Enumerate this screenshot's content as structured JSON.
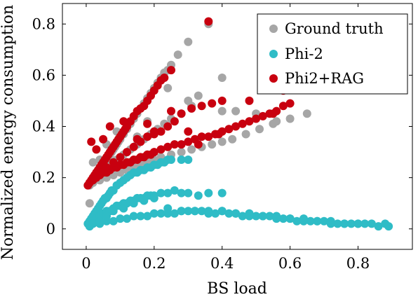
{
  "chart_data": {
    "type": "scatter",
    "title": "",
    "xlabel": "BS load",
    "ylabel": "Normalized energy consumption",
    "xlim": [
      -0.07,
      0.96
    ],
    "ylim": [
      -0.08,
      0.88
    ],
    "xticks": [
      {
        "value": 0,
        "label": "0"
      },
      {
        "value": 0.2,
        "label": "0.2"
      },
      {
        "value": 0.4,
        "label": "0.4"
      },
      {
        "value": 0.6,
        "label": "0.6"
      },
      {
        "value": 0.8,
        "label": "0.8"
      }
    ],
    "yticks": [
      {
        "value": 0,
        "label": "0"
      },
      {
        "value": 0.2,
        "label": "0.2"
      },
      {
        "value": 0.4,
        "label": "0.4"
      },
      {
        "value": 0.6,
        "label": "0.6"
      },
      {
        "value": 0.8,
        "label": "0.8"
      }
    ],
    "grid": false,
    "legend_position": "top-right",
    "series": [
      {
        "name": "Ground truth",
        "color": "#a6a6a6",
        "x": [
          0.01,
          0.015,
          0.02,
          0.025,
          0.03,
          0.035,
          0.04,
          0.045,
          0.05,
          0.055,
          0.06,
          0.065,
          0.07,
          0.075,
          0.08,
          0.085,
          0.09,
          0.095,
          0.1,
          0.11,
          0.12,
          0.13,
          0.14,
          0.15,
          0.16,
          0.17,
          0.18,
          0.19,
          0.2,
          0.21,
          0.22,
          0.23,
          0.24,
          0.25,
          0.27,
          0.3,
          0.33,
          0.36,
          0.4,
          0.02,
          0.04,
          0.06,
          0.08,
          0.1,
          0.12,
          0.14,
          0.16,
          0.18,
          0.2,
          0.22,
          0.25,
          0.28,
          0.31,
          0.34,
          0.37,
          0.4,
          0.43,
          0.47,
          0.51,
          0.55,
          0.6,
          0.65,
          0.03,
          0.05,
          0.07,
          0.09,
          0.11,
          0.13,
          0.15,
          0.17,
          0.19,
          0.21,
          0.23,
          0.25,
          0.28,
          0.31,
          0.01,
          0.02,
          0.04,
          0.06,
          0.09,
          0.12,
          0.15,
          0.18,
          0.24,
          0.3,
          0.4,
          0.44,
          0.5,
          0.56,
          0.62
        ],
        "y": [
          0.17,
          0.18,
          0.19,
          0.2,
          0.21,
          0.22,
          0.23,
          0.24,
          0.25,
          0.26,
          0.27,
          0.28,
          0.29,
          0.3,
          0.31,
          0.32,
          0.33,
          0.34,
          0.35,
          0.37,
          0.39,
          0.41,
          0.43,
          0.45,
          0.47,
          0.49,
          0.51,
          0.53,
          0.55,
          0.57,
          0.59,
          0.61,
          0.62,
          0.64,
          0.68,
          0.73,
          0.52,
          0.8,
          0.59,
          0.18,
          0.19,
          0.2,
          0.21,
          0.22,
          0.23,
          0.24,
          0.25,
          0.26,
          0.27,
          0.28,
          0.29,
          0.3,
          0.31,
          0.32,
          0.33,
          0.34,
          0.35,
          0.37,
          0.39,
          0.41,
          0.43,
          0.45,
          0.21,
          0.23,
          0.25,
          0.27,
          0.29,
          0.31,
          0.33,
          0.35,
          0.37,
          0.39,
          0.41,
          0.43,
          0.45,
          0.48,
          0.1,
          0.26,
          0.27,
          0.33,
          0.38,
          0.4,
          0.36,
          0.42,
          0.55,
          0.5,
          0.46,
          0.46,
          0.45,
          0.42,
          0.56
        ]
      },
      {
        "name": "Phi-2",
        "color": "#2fbcc6",
        "x": [
          0.005,
          0.01,
          0.015,
          0.02,
          0.025,
          0.03,
          0.035,
          0.04,
          0.045,
          0.05,
          0.055,
          0.06,
          0.065,
          0.07,
          0.075,
          0.08,
          0.09,
          0.1,
          0.11,
          0.12,
          0.13,
          0.14,
          0.15,
          0.16,
          0.17,
          0.18,
          0.19,
          0.2,
          0.21,
          0.22,
          0.23,
          0.24,
          0.25,
          0.28,
          0.3,
          0.01,
          0.02,
          0.03,
          0.04,
          0.05,
          0.06,
          0.07,
          0.08,
          0.09,
          0.1,
          0.11,
          0.12,
          0.13,
          0.14,
          0.15,
          0.16,
          0.17,
          0.18,
          0.19,
          0.2,
          0.22,
          0.24,
          0.26,
          0.28,
          0.3,
          0.33,
          0.36,
          0.4,
          0.01,
          0.02,
          0.04,
          0.06,
          0.08,
          0.1,
          0.12,
          0.14,
          0.16,
          0.18,
          0.2,
          0.22,
          0.24,
          0.26,
          0.28,
          0.3,
          0.32,
          0.34,
          0.36,
          0.38,
          0.4,
          0.42,
          0.44,
          0.46,
          0.48,
          0.5,
          0.52,
          0.54,
          0.56,
          0.58,
          0.6,
          0.62,
          0.64,
          0.66,
          0.68,
          0.7,
          0.72,
          0.74,
          0.76,
          0.78,
          0.8,
          0.82,
          0.84,
          0.86,
          0.88,
          0.89,
          0.04,
          0.06,
          0.08,
          0.11,
          0.14,
          0.17,
          0.2,
          0.24,
          0.28,
          0.32,
          0.36,
          0.4,
          0.44,
          0.48,
          0.52,
          0.56,
          0.6,
          0.64,
          0.68,
          0.72,
          0.76,
          0.8
        ],
        "y": [
          0.02,
          0.03,
          0.04,
          0.05,
          0.06,
          0.07,
          0.08,
          0.09,
          0.1,
          0.11,
          0.12,
          0.12,
          0.13,
          0.14,
          0.15,
          0.15,
          0.17,
          0.18,
          0.19,
          0.2,
          0.21,
          0.22,
          0.22,
          0.23,
          0.23,
          0.24,
          0.24,
          0.25,
          0.25,
          0.26,
          0.26,
          0.27,
          0.27,
          0.27,
          0.27,
          0.02,
          0.03,
          0.04,
          0.05,
          0.06,
          0.07,
          0.07,
          0.08,
          0.09,
          0.09,
          0.1,
          0.1,
          0.11,
          0.11,
          0.12,
          0.12,
          0.12,
          0.13,
          0.13,
          0.13,
          0.14,
          0.14,
          0.15,
          0.14,
          0.14,
          0.13,
          0.14,
          0.14,
          0.01,
          0.02,
          0.02,
          0.03,
          0.03,
          0.04,
          0.04,
          0.05,
          0.05,
          0.05,
          0.06,
          0.06,
          0.06,
          0.06,
          0.07,
          0.07,
          0.07,
          0.07,
          0.07,
          0.06,
          0.07,
          0.06,
          0.06,
          0.05,
          0.06,
          0.05,
          0.05,
          0.05,
          0.05,
          0.04,
          0.04,
          0.03,
          0.04,
          0.03,
          0.03,
          0.03,
          0.03,
          0.02,
          0.02,
          0.02,
          0.02,
          0.02,
          0.02,
          0.01,
          0.02,
          0.01,
          0.03,
          0.05,
          0.07,
          0.08,
          0.1,
          0.11,
          0.12,
          0.08,
          0.07,
          0.07,
          0.06,
          0.07,
          0.06,
          0.05,
          0.05,
          0.04,
          0.04,
          0.03,
          0.03,
          0.02,
          0.02,
          0.02
        ]
      },
      {
        "name": "Phi2+RAG",
        "color": "#c8000f",
        "x": [
          0.005,
          0.01,
          0.015,
          0.02,
          0.025,
          0.03,
          0.035,
          0.04,
          0.045,
          0.05,
          0.055,
          0.06,
          0.065,
          0.07,
          0.075,
          0.08,
          0.085,
          0.09,
          0.095,
          0.1,
          0.105,
          0.11,
          0.115,
          0.12,
          0.13,
          0.14,
          0.15,
          0.16,
          0.17,
          0.18,
          0.19,
          0.2,
          0.21,
          0.22,
          0.23,
          0.25,
          0.36,
          0.01,
          0.02,
          0.03,
          0.04,
          0.05,
          0.06,
          0.07,
          0.08,
          0.09,
          0.1,
          0.11,
          0.12,
          0.13,
          0.14,
          0.15,
          0.16,
          0.17,
          0.18,
          0.19,
          0.2,
          0.22,
          0.24,
          0.26,
          0.28,
          0.3,
          0.32,
          0.34,
          0.36,
          0.38,
          0.4,
          0.42,
          0.44,
          0.46,
          0.48,
          0.5,
          0.52,
          0.54,
          0.56,
          0.58,
          0.6,
          0.02,
          0.04,
          0.06,
          0.08,
          0.1,
          0.12,
          0.14,
          0.16,
          0.18,
          0.2,
          0.22,
          0.24,
          0.26,
          0.28,
          0.31,
          0.34,
          0.37,
          0.4,
          0.015,
          0.03,
          0.05,
          0.07,
          0.11,
          0.15,
          0.18,
          0.2,
          0.25,
          0.3,
          0.33,
          0.39,
          0.48,
          0.55,
          0.58,
          0.62
        ],
        "y": [
          0.17,
          0.18,
          0.19,
          0.2,
          0.21,
          0.22,
          0.23,
          0.24,
          0.25,
          0.26,
          0.27,
          0.28,
          0.29,
          0.3,
          0.31,
          0.32,
          0.33,
          0.34,
          0.35,
          0.36,
          0.37,
          0.38,
          0.39,
          0.4,
          0.42,
          0.44,
          0.46,
          0.47,
          0.48,
          0.5,
          0.52,
          0.54,
          0.56,
          0.58,
          0.59,
          0.62,
          0.81,
          0.18,
          0.19,
          0.2,
          0.21,
          0.22,
          0.22,
          0.23,
          0.24,
          0.24,
          0.25,
          0.25,
          0.26,
          0.26,
          0.27,
          0.27,
          0.28,
          0.28,
          0.29,
          0.29,
          0.3,
          0.31,
          0.32,
          0.33,
          0.33,
          0.34,
          0.35,
          0.36,
          0.36,
          0.37,
          0.38,
          0.39,
          0.4,
          0.41,
          0.42,
          0.43,
          0.44,
          0.45,
          0.46,
          0.48,
          0.49,
          0.2,
          0.22,
          0.24,
          0.26,
          0.28,
          0.3,
          0.32,
          0.34,
          0.36,
          0.37,
          0.38,
          0.4,
          0.42,
          0.45,
          0.47,
          0.48,
          0.49,
          0.5,
          0.34,
          0.31,
          0.35,
          0.4,
          0.42,
          0.35,
          0.41,
          0.38,
          0.46,
          0.38,
          0.33,
          0.37,
          0.5,
          0.45,
          0.54,
          0.55
        ]
      }
    ]
  }
}
